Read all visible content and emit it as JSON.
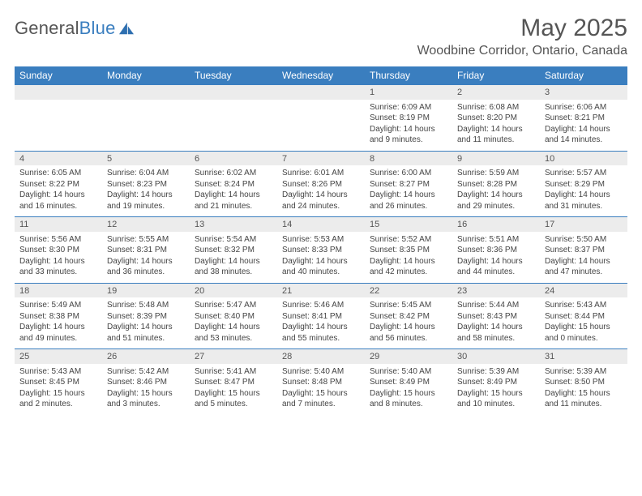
{
  "brand": {
    "name_gray": "General",
    "name_blue": "Blue"
  },
  "title": {
    "month": "May 2025",
    "location": "Woodbine Corridor, Ontario, Canada"
  },
  "colors": {
    "accent": "#3a7ebf",
    "header_text": "#ffffff",
    "daynum_bg": "#ececec",
    "text": "#444",
    "title_text": "#555"
  },
  "daynames": [
    "Sunday",
    "Monday",
    "Tuesday",
    "Wednesday",
    "Thursday",
    "Friday",
    "Saturday"
  ],
  "weeks": [
    [
      {
        "n": "",
        "sr": "",
        "ss": "",
        "dl": ""
      },
      {
        "n": "",
        "sr": "",
        "ss": "",
        "dl": ""
      },
      {
        "n": "",
        "sr": "",
        "ss": "",
        "dl": ""
      },
      {
        "n": "",
        "sr": "",
        "ss": "",
        "dl": ""
      },
      {
        "n": "1",
        "sr": "Sunrise: 6:09 AM",
        "ss": "Sunset: 8:19 PM",
        "dl": "Daylight: 14 hours and 9 minutes."
      },
      {
        "n": "2",
        "sr": "Sunrise: 6:08 AM",
        "ss": "Sunset: 8:20 PM",
        "dl": "Daylight: 14 hours and 11 minutes."
      },
      {
        "n": "3",
        "sr": "Sunrise: 6:06 AM",
        "ss": "Sunset: 8:21 PM",
        "dl": "Daylight: 14 hours and 14 minutes."
      }
    ],
    [
      {
        "n": "4",
        "sr": "Sunrise: 6:05 AM",
        "ss": "Sunset: 8:22 PM",
        "dl": "Daylight: 14 hours and 16 minutes."
      },
      {
        "n": "5",
        "sr": "Sunrise: 6:04 AM",
        "ss": "Sunset: 8:23 PM",
        "dl": "Daylight: 14 hours and 19 minutes."
      },
      {
        "n": "6",
        "sr": "Sunrise: 6:02 AM",
        "ss": "Sunset: 8:24 PM",
        "dl": "Daylight: 14 hours and 21 minutes."
      },
      {
        "n": "7",
        "sr": "Sunrise: 6:01 AM",
        "ss": "Sunset: 8:26 PM",
        "dl": "Daylight: 14 hours and 24 minutes."
      },
      {
        "n": "8",
        "sr": "Sunrise: 6:00 AM",
        "ss": "Sunset: 8:27 PM",
        "dl": "Daylight: 14 hours and 26 minutes."
      },
      {
        "n": "9",
        "sr": "Sunrise: 5:59 AM",
        "ss": "Sunset: 8:28 PM",
        "dl": "Daylight: 14 hours and 29 minutes."
      },
      {
        "n": "10",
        "sr": "Sunrise: 5:57 AM",
        "ss": "Sunset: 8:29 PM",
        "dl": "Daylight: 14 hours and 31 minutes."
      }
    ],
    [
      {
        "n": "11",
        "sr": "Sunrise: 5:56 AM",
        "ss": "Sunset: 8:30 PM",
        "dl": "Daylight: 14 hours and 33 minutes."
      },
      {
        "n": "12",
        "sr": "Sunrise: 5:55 AM",
        "ss": "Sunset: 8:31 PM",
        "dl": "Daylight: 14 hours and 36 minutes."
      },
      {
        "n": "13",
        "sr": "Sunrise: 5:54 AM",
        "ss": "Sunset: 8:32 PM",
        "dl": "Daylight: 14 hours and 38 minutes."
      },
      {
        "n": "14",
        "sr": "Sunrise: 5:53 AM",
        "ss": "Sunset: 8:33 PM",
        "dl": "Daylight: 14 hours and 40 minutes."
      },
      {
        "n": "15",
        "sr": "Sunrise: 5:52 AM",
        "ss": "Sunset: 8:35 PM",
        "dl": "Daylight: 14 hours and 42 minutes."
      },
      {
        "n": "16",
        "sr": "Sunrise: 5:51 AM",
        "ss": "Sunset: 8:36 PM",
        "dl": "Daylight: 14 hours and 44 minutes."
      },
      {
        "n": "17",
        "sr": "Sunrise: 5:50 AM",
        "ss": "Sunset: 8:37 PM",
        "dl": "Daylight: 14 hours and 47 minutes."
      }
    ],
    [
      {
        "n": "18",
        "sr": "Sunrise: 5:49 AM",
        "ss": "Sunset: 8:38 PM",
        "dl": "Daylight: 14 hours and 49 minutes."
      },
      {
        "n": "19",
        "sr": "Sunrise: 5:48 AM",
        "ss": "Sunset: 8:39 PM",
        "dl": "Daylight: 14 hours and 51 minutes."
      },
      {
        "n": "20",
        "sr": "Sunrise: 5:47 AM",
        "ss": "Sunset: 8:40 PM",
        "dl": "Daylight: 14 hours and 53 minutes."
      },
      {
        "n": "21",
        "sr": "Sunrise: 5:46 AM",
        "ss": "Sunset: 8:41 PM",
        "dl": "Daylight: 14 hours and 55 minutes."
      },
      {
        "n": "22",
        "sr": "Sunrise: 5:45 AM",
        "ss": "Sunset: 8:42 PM",
        "dl": "Daylight: 14 hours and 56 minutes."
      },
      {
        "n": "23",
        "sr": "Sunrise: 5:44 AM",
        "ss": "Sunset: 8:43 PM",
        "dl": "Daylight: 14 hours and 58 minutes."
      },
      {
        "n": "24",
        "sr": "Sunrise: 5:43 AM",
        "ss": "Sunset: 8:44 PM",
        "dl": "Daylight: 15 hours and 0 minutes."
      }
    ],
    [
      {
        "n": "25",
        "sr": "Sunrise: 5:43 AM",
        "ss": "Sunset: 8:45 PM",
        "dl": "Daylight: 15 hours and 2 minutes."
      },
      {
        "n": "26",
        "sr": "Sunrise: 5:42 AM",
        "ss": "Sunset: 8:46 PM",
        "dl": "Daylight: 15 hours and 3 minutes."
      },
      {
        "n": "27",
        "sr": "Sunrise: 5:41 AM",
        "ss": "Sunset: 8:47 PM",
        "dl": "Daylight: 15 hours and 5 minutes."
      },
      {
        "n": "28",
        "sr": "Sunrise: 5:40 AM",
        "ss": "Sunset: 8:48 PM",
        "dl": "Daylight: 15 hours and 7 minutes."
      },
      {
        "n": "29",
        "sr": "Sunrise: 5:40 AM",
        "ss": "Sunset: 8:49 PM",
        "dl": "Daylight: 15 hours and 8 minutes."
      },
      {
        "n": "30",
        "sr": "Sunrise: 5:39 AM",
        "ss": "Sunset: 8:49 PM",
        "dl": "Daylight: 15 hours and 10 minutes."
      },
      {
        "n": "31",
        "sr": "Sunrise: 5:39 AM",
        "ss": "Sunset: 8:50 PM",
        "dl": "Daylight: 15 hours and 11 minutes."
      }
    ]
  ]
}
